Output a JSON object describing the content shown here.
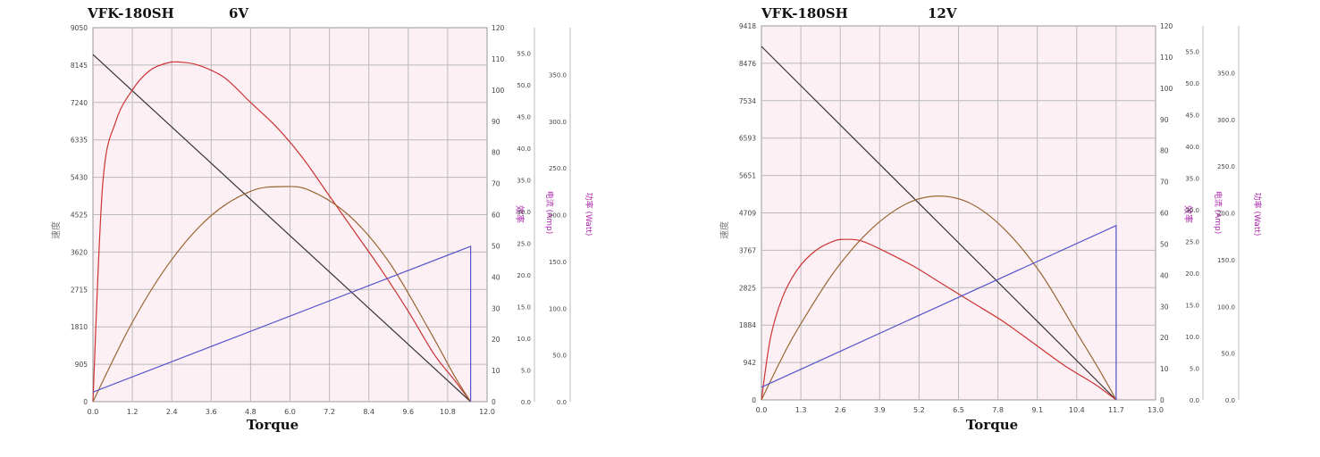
{
  "chart_data": [
    {
      "type": "line",
      "title": "VFK-180SH",
      "subtitle": "6V",
      "xlabel": "Torque",
      "ylabels": [
        "速度",
        "效率",
        "电流 (Amp)",
        "功率 (Watt)"
      ],
      "x_ticks": [
        "0.0",
        "1.2",
        "2.4",
        "3.6",
        "4.8",
        "6.0",
        "7.2",
        "8.4",
        "9.6",
        "10.8",
        "12.0"
      ],
      "xlim": [
        0,
        12.0
      ],
      "axes": {
        "speed": {
          "ticks": [
            "0",
            "905",
            "1810",
            "2715",
            "3620",
            "4525",
            "5430",
            "6335",
            "7240",
            "8145",
            "9050"
          ],
          "ylim": [
            0,
            9050
          ]
        },
        "efficiency": {
          "ticks": [
            "0",
            "10",
            "20",
            "30",
            "40",
            "50",
            "60",
            "70",
            "80",
            "90",
            "100",
            "110",
            "120"
          ],
          "ylim": [
            0,
            120
          ]
        },
        "current": {
          "ticks": [
            "0.0",
            "5.0",
            "10.0",
            "15.0",
            "20.0",
            "25.0",
            "30.0",
            "35.0",
            "40.0",
            "45.0",
            "50.0",
            "55.0"
          ],
          "ylim": [
            0,
            59
          ]
        },
        "power": {
          "ticks": [
            "0.0",
            "50.0",
            "100.0",
            "150.0",
            "200.0",
            "250.0",
            "300.0",
            "350.0"
          ],
          "ylim": [
            0,
            400
          ]
        }
      },
      "grid": true,
      "background": "#fdf0f4",
      "series": [
        {
          "color": "#333333",
          "axis": "speed",
          "x": [
            0,
            11.5
          ],
          "y": [
            8400,
            0
          ]
        },
        {
          "color": "#cc3333",
          "axis": "efficiency",
          "x": [
            0,
            0.3,
            0.7,
            1.2,
            1.7,
            2.2,
            2.6,
            3.2,
            4.0,
            4.8,
            5.6,
            6.4,
            7.2,
            8.0,
            8.8,
            9.6,
            10.4,
            11.0,
            11.5
          ],
          "y": [
            0,
            70,
            90,
            100,
            106,
            108.5,
            109,
            108,
            104,
            96,
            88,
            78,
            66,
            54,
            42,
            29,
            15,
            7,
            0
          ]
        },
        {
          "color": "#996633",
          "axis": "power",
          "x": [
            0,
            1.2,
            2.4,
            3.6,
            4.8,
            5.75,
            6.6,
            7.8,
            9.0,
            10.2,
            11.0,
            11.5
          ],
          "y": [
            0,
            85,
            152,
            199,
            225,
            230,
            226,
            199,
            150,
            79,
            28,
            0
          ]
        },
        {
          "color": "#5555cc",
          "axis": "current",
          "x": [
            0,
            11.5,
            11.5
          ],
          "y": [
            1.5,
            24.5,
            0
          ]
        }
      ]
    },
    {
      "type": "line",
      "title": "VFK-180SH",
      "subtitle": "12V",
      "xlabel": "Torque",
      "ylabels": [
        "速度",
        "效率",
        "电流 (Amp)",
        "功率 (Watt)"
      ],
      "x_ticks": [
        "0.0",
        "1.3",
        "2.6",
        "3.9",
        "5.2",
        "6.5",
        "7.8",
        "9.1",
        "10.4",
        "11.7",
        "13.0"
      ],
      "xlim": [
        0,
        13.0
      ],
      "axes": {
        "speed": {
          "ticks": [
            "0",
            "942",
            "1884",
            "2825",
            "3767",
            "4709",
            "5651",
            "6593",
            "7534",
            "8476",
            "9418"
          ],
          "ylim": [
            0,
            9418
          ]
        },
        "efficiency": {
          "ticks": [
            "0",
            "10",
            "20",
            "30",
            "40",
            "50",
            "60",
            "70",
            "80",
            "90",
            "100",
            "110",
            "120"
          ],
          "ylim": [
            0,
            120
          ]
        },
        "current": {
          "ticks": [
            "0.0",
            "5.0",
            "10.0",
            "15.0",
            "20.0",
            "25.0",
            "30.0",
            "35.0",
            "40.0",
            "45.0",
            "50.0",
            "55.0"
          ],
          "ylim": [
            0,
            59
          ]
        },
        "power": {
          "ticks": [
            "0.0",
            "50.0",
            "100.0",
            "150.0",
            "200.0",
            "250.0",
            "300.0",
            "350.0"
          ],
          "ylim": [
            0,
            400
          ]
        }
      },
      "grid": true,
      "background": "#fdf0f4",
      "series": [
        {
          "color": "#333333",
          "axis": "speed",
          "x": [
            0,
            11.7
          ],
          "y": [
            8900,
            0
          ]
        },
        {
          "color": "#cc3333",
          "axis": "efficiency",
          "x": [
            0,
            0.3,
            0.7,
            1.2,
            1.8,
            2.4,
            2.8,
            3.3,
            4.0,
            5.0,
            6.0,
            7.0,
            8.0,
            9.0,
            10.0,
            11.0,
            11.7
          ],
          "y": [
            0,
            20,
            33,
            42,
            48,
            51,
            51.5,
            51,
            48,
            43,
            37,
            31,
            25,
            18,
            11,
            5,
            0
          ]
        },
        {
          "color": "#996633",
          "axis": "power",
          "x": [
            0,
            0.6,
            1.2,
            2.4,
            3.6,
            4.8,
            5.85,
            6.9,
            8.0,
            9.2,
            10.4,
            11.2,
            11.7
          ],
          "y": [
            0,
            40,
            76,
            137,
            182,
            210,
            218,
            210,
            183,
            136,
            72,
            29,
            0
          ]
        },
        {
          "color": "#5555cc",
          "axis": "current",
          "x": [
            0,
            11.7,
            11.7
          ],
          "y": [
            2,
            27.5,
            0
          ]
        }
      ]
    }
  ]
}
